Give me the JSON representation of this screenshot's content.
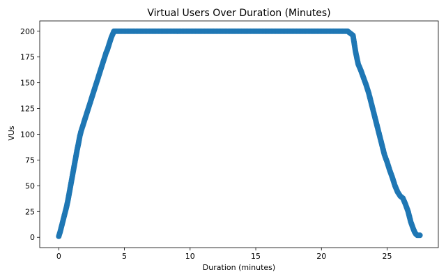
{
  "chart_data": {
    "type": "scatter",
    "title": "Virtual Users Over Duration (Minutes)",
    "xlabel": "Duration (minutes)",
    "ylabel": "VUs",
    "xlim": [
      -1.45,
      28.9
    ],
    "ylim": [
      -10,
      210
    ],
    "xticks": [
      0,
      5,
      10,
      15,
      20,
      25
    ],
    "yticks": [
      0,
      25,
      50,
      75,
      100,
      125,
      150,
      175,
      200
    ],
    "grid": false,
    "legend": "none",
    "marker": "circle",
    "marker_color": "#1f77b4",
    "series": [
      {
        "x": [
          0.0,
          0.1,
          0.2,
          0.3,
          0.4,
          0.5,
          0.6,
          0.7,
          0.8,
          0.9,
          1.0,
          1.1,
          1.2,
          1.3,
          1.4,
          1.5,
          1.6,
          1.7,
          1.8,
          1.9,
          2.0,
          2.1,
          2.2,
          2.3,
          2.4,
          2.5,
          2.6,
          2.7,
          2.8,
          2.9,
          3.0,
          3.1,
          3.2,
          3.3,
          3.4,
          3.5,
          3.6,
          3.7,
          3.8,
          3.9,
          4.0,
          4.1,
          4.2,
          4.3,
          4.4,
          4.5,
          4.6,
          4.7,
          4.8,
          4.9,
          5.0,
          5.5,
          6.0,
          6.5,
          7.0,
          7.5,
          8.0,
          8.5,
          9.0,
          9.5,
          10.0,
          10.5,
          11.0,
          11.5,
          12.0,
          12.5,
          13.0,
          13.5,
          14.0,
          14.5,
          15.0,
          15.5,
          16.0,
          16.5,
          17.0,
          17.5,
          18.0,
          18.5,
          19.0,
          19.5,
          20.0,
          20.5,
          21.0,
          21.5,
          22.0,
          22.2,
          22.4,
          22.6,
          22.8,
          23.0,
          23.2,
          23.4,
          23.6,
          23.8,
          24.0,
          24.2,
          24.4,
          24.6,
          24.8,
          25.0,
          25.2,
          25.4,
          25.6,
          25.8,
          26.0,
          26.2,
          26.4,
          26.6,
          26.8,
          27.0,
          27.1,
          27.2,
          27.3,
          27.4,
          27.5
        ],
        "y": [
          1,
          5,
          10,
          15,
          20,
          25,
          30,
          36,
          43,
          50,
          57,
          64,
          71,
          78,
          85,
          91,
          98,
          103,
          107,
          111,
          115,
          119,
          123,
          127,
          131,
          135,
          139,
          143,
          147,
          151,
          155,
          159,
          163,
          167,
          171,
          175,
          179,
          182,
          186,
          190,
          194,
          197,
          200,
          200,
          200,
          200,
          200,
          200,
          200,
          200,
          200,
          200,
          200,
          200,
          200,
          200,
          200,
          200,
          200,
          200,
          200,
          200,
          200,
          200,
          200,
          200,
          200,
          200,
          200,
          200,
          200,
          200,
          200,
          200,
          200,
          200,
          200,
          200,
          200,
          200,
          200,
          200,
          200,
          200,
          200,
          198,
          196,
          180,
          168,
          162,
          155,
          148,
          140,
          130,
          120,
          110,
          100,
          90,
          80,
          73,
          65,
          58,
          50,
          44,
          40,
          38,
          32,
          25,
          15,
          8,
          5,
          3,
          2,
          2,
          2
        ]
      }
    ]
  }
}
